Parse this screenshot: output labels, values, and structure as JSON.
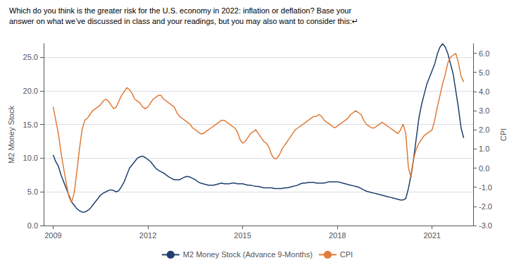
{
  "chart_data": {
    "type": "line",
    "title": "Which do you think is the greater risk for the U.S. economy in 2022: inflation or deflation? Base your",
    "subtitle": "answer on what we’ve discussed in class and your readings, but you may also want to consider this:↵",
    "ylabel": "M2 Money Stock",
    "y2label": "CPI",
    "xlim": [
      2008.7,
      2022.3
    ],
    "xticks": [
      2009,
      2012,
      2015,
      2018,
      2021
    ],
    "ylim": [
      0.0,
      27.0
    ],
    "yticks": [
      {
        "value": 0.0,
        "label": "0.0"
      },
      {
        "value": 5.0,
        "label": "5.0"
      },
      {
        "value": 10.0,
        "label": "10.0"
      },
      {
        "value": 15.0,
        "label": "15.0"
      },
      {
        "value": 20.0,
        "label": "20.0"
      },
      {
        "value": 25.0,
        "label": "25.0"
      }
    ],
    "y2lim": [
      -3.0,
      6.5
    ],
    "y2ticks": [
      {
        "value": -3.0,
        "label": "-3.0"
      },
      {
        "value": -2.0,
        "label": "-2.0"
      },
      {
        "value": -1.0,
        "label": "-1.0"
      },
      {
        "value": 0.0,
        "label": "0.0"
      },
      {
        "value": 1.0,
        "label": "1.0"
      },
      {
        "value": 2.0,
        "label": "2.0"
      },
      {
        "value": 3.0,
        "label": "3.0"
      },
      {
        "value": 4.0,
        "label": "4.0"
      },
      {
        "value": 5.0,
        "label": "5.0"
      },
      {
        "value": 6.0,
        "label": "6.0"
      }
    ],
    "grid": true,
    "legend": "bottom",
    "x": [
      2009.0,
      2009.083,
      2009.167,
      2009.25,
      2009.333,
      2009.417,
      2009.5,
      2009.583,
      2009.667,
      2009.75,
      2009.833,
      2009.917,
      2010.0,
      2010.083,
      2010.167,
      2010.25,
      2010.333,
      2010.417,
      2010.5,
      2010.583,
      2010.667,
      2010.75,
      2010.833,
      2010.917,
      2011.0,
      2011.083,
      2011.167,
      2011.25,
      2011.333,
      2011.417,
      2011.5,
      2011.583,
      2011.667,
      2011.75,
      2011.833,
      2011.917,
      2012.0,
      2012.083,
      2012.167,
      2012.25,
      2012.333,
      2012.417,
      2012.5,
      2012.583,
      2012.667,
      2012.75,
      2012.833,
      2012.917,
      2013.0,
      2013.083,
      2013.167,
      2013.25,
      2013.333,
      2013.417,
      2013.5,
      2013.583,
      2013.667,
      2013.75,
      2013.833,
      2013.917,
      2014.0,
      2014.083,
      2014.167,
      2014.25,
      2014.333,
      2014.417,
      2014.5,
      2014.583,
      2014.667,
      2014.75,
      2014.833,
      2014.917,
      2015.0,
      2015.083,
      2015.167,
      2015.25,
      2015.333,
      2015.417,
      2015.5,
      2015.583,
      2015.667,
      2015.75,
      2015.833,
      2015.917,
      2016.0,
      2016.083,
      2016.167,
      2016.25,
      2016.333,
      2016.417,
      2016.5,
      2016.583,
      2016.667,
      2016.75,
      2016.833,
      2016.917,
      2017.0,
      2017.083,
      2017.167,
      2017.25,
      2017.333,
      2017.417,
      2017.5,
      2017.583,
      2017.667,
      2017.75,
      2017.833,
      2017.917,
      2018.0,
      2018.083,
      2018.167,
      2018.25,
      2018.333,
      2018.417,
      2018.5,
      2018.583,
      2018.667,
      2018.75,
      2018.833,
      2018.917,
      2019.0,
      2019.083,
      2019.167,
      2019.25,
      2019.333,
      2019.417,
      2019.5,
      2019.583,
      2019.667,
      2019.75,
      2019.833,
      2019.917,
      2020.0,
      2020.083,
      2020.167,
      2020.25,
      2020.333,
      2020.417,
      2020.5,
      2020.583,
      2020.667,
      2020.75,
      2020.833,
      2020.917,
      2021.0,
      2021.083,
      2021.167,
      2021.25,
      2021.333,
      2021.417,
      2021.5,
      2021.583,
      2021.667,
      2021.75,
      2021.833,
      2021.917,
      2022.0
    ],
    "series": [
      {
        "name": "M2 Money Stock (Advance 9-Months)",
        "color": "#1f3f6e",
        "axis": "y",
        "values": [
          10.5,
          9.5,
          8.8,
          7.5,
          6.5,
          5.5,
          4.5,
          3.5,
          3.0,
          2.5,
          2.2,
          2.0,
          2.0,
          2.2,
          2.5,
          3.0,
          3.5,
          4.0,
          4.5,
          4.8,
          5.0,
          5.2,
          5.3,
          5.2,
          5.0,
          5.2,
          5.8,
          6.5,
          7.5,
          8.5,
          9.0,
          9.5,
          10.0,
          10.2,
          10.3,
          10.1,
          9.8,
          9.5,
          9.0,
          8.5,
          8.2,
          8.0,
          7.8,
          7.5,
          7.2,
          7.0,
          6.8,
          6.8,
          6.8,
          7.0,
          7.2,
          7.3,
          7.2,
          7.0,
          6.8,
          6.5,
          6.3,
          6.2,
          6.1,
          6.0,
          6.0,
          6.0,
          6.1,
          6.2,
          6.3,
          6.2,
          6.2,
          6.2,
          6.3,
          6.3,
          6.2,
          6.2,
          6.2,
          6.1,
          6.0,
          6.0,
          5.9,
          5.8,
          5.8,
          5.7,
          5.6,
          5.6,
          5.6,
          5.6,
          5.5,
          5.5,
          5.5,
          5.5,
          5.6,
          5.6,
          5.7,
          5.8,
          5.9,
          6.0,
          6.2,
          6.3,
          6.3,
          6.4,
          6.4,
          6.4,
          6.3,
          6.3,
          6.3,
          6.3,
          6.4,
          6.5,
          6.5,
          6.5,
          6.5,
          6.4,
          6.3,
          6.2,
          6.1,
          6.0,
          5.9,
          5.8,
          5.7,
          5.5,
          5.3,
          5.1,
          5.0,
          4.9,
          4.8,
          4.7,
          4.6,
          4.5,
          4.4,
          4.3,
          4.2,
          4.1,
          4.0,
          3.9,
          3.8,
          3.8,
          4.0,
          5.5,
          7.5,
          10.0,
          13.0,
          16.0,
          18.0,
          19.5,
          21.0,
          22.0,
          23.0,
          24.0,
          25.5,
          26.5,
          27.0,
          26.5,
          25.5,
          24.0,
          22.5,
          20.0,
          17.5,
          14.5,
          13.0
        ]
      },
      {
        "name": "CPI",
        "color": "#e07b39",
        "axis": "y2",
        "values": [
          3.2,
          2.5,
          1.8,
          0.8,
          0.0,
          -0.8,
          -1.5,
          -1.8,
          -1.3,
          -0.2,
          1.0,
          2.0,
          2.5,
          2.6,
          2.8,
          3.0,
          3.1,
          3.2,
          3.3,
          3.5,
          3.6,
          3.5,
          3.3,
          3.1,
          3.2,
          3.5,
          3.8,
          4.0,
          4.2,
          4.1,
          3.9,
          3.6,
          3.5,
          3.4,
          3.2,
          3.1,
          3.2,
          3.4,
          3.6,
          3.7,
          3.8,
          3.8,
          3.6,
          3.5,
          3.4,
          3.3,
          3.2,
          2.9,
          2.7,
          2.6,
          2.5,
          2.4,
          2.3,
          2.1,
          2.0,
          1.9,
          1.8,
          1.8,
          1.9,
          2.0,
          2.1,
          2.2,
          2.3,
          2.4,
          2.5,
          2.5,
          2.4,
          2.3,
          2.2,
          2.1,
          1.9,
          1.5,
          1.3,
          1.4,
          1.6,
          1.8,
          1.9,
          2.0,
          1.8,
          1.6,
          1.4,
          1.3,
          1.1,
          0.7,
          0.5,
          0.5,
          0.7,
          1.0,
          1.2,
          1.4,
          1.6,
          1.8,
          2.0,
          2.1,
          2.2,
          2.3,
          2.4,
          2.5,
          2.6,
          2.7,
          2.7,
          2.8,
          2.7,
          2.5,
          2.4,
          2.3,
          2.2,
          2.1,
          2.2,
          2.3,
          2.4,
          2.5,
          2.6,
          2.8,
          2.9,
          3.0,
          2.9,
          2.8,
          2.5,
          2.3,
          2.2,
          2.1,
          2.1,
          2.2,
          2.3,
          2.4,
          2.3,
          2.2,
          2.1,
          2.0,
          1.9,
          1.8,
          2.0,
          2.3,
          1.8,
          0.0,
          -0.5,
          0.5,
          1.0,
          1.3,
          1.5,
          1.7,
          1.8,
          1.9,
          2.0,
          2.5,
          3.2,
          3.8,
          4.4,
          4.9,
          5.5,
          5.8,
          5.9,
          6.0,
          5.5,
          4.8,
          4.5
        ]
      }
    ]
  }
}
